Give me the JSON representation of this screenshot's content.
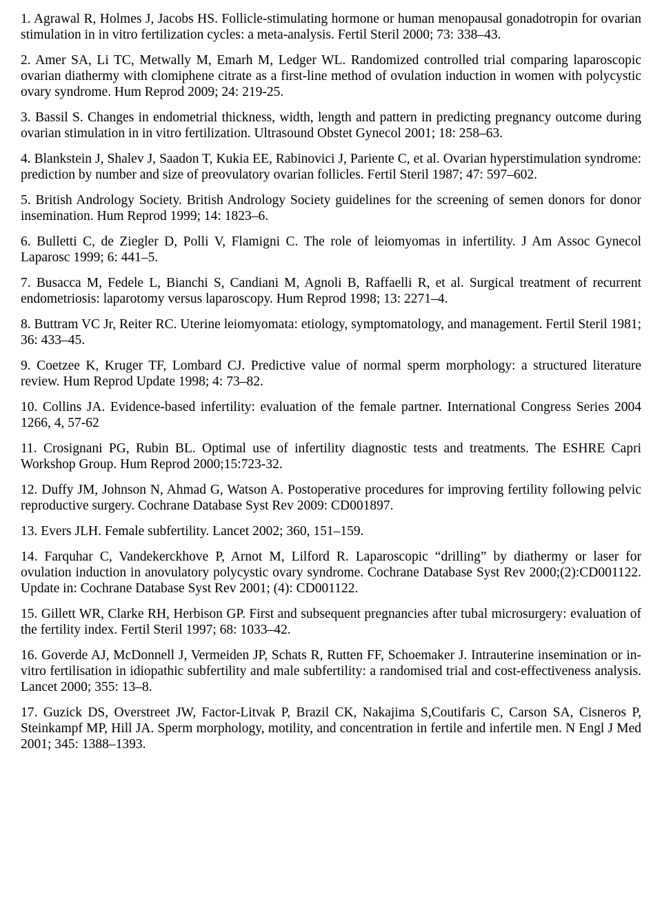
{
  "references": [
    "1. Agrawal R, Holmes J, Jacobs HS. Follicle-stimulating hormone or human menopausal gonadotropin for ovarian stimulation in in vitro fertilization cycles: a meta-analysis. Fertil Steril 2000; 73: 338–43.",
    "2. Amer SA, Li TC, Metwally M, Emarh M, Ledger WL. Randomized controlled trial comparing laparoscopic ovarian diathermy with clomiphene citrate as a first-line method of ovulation induction in women with polycystic ovary syndrome. Hum Reprod 2009; 24: 219-25.",
    "3. Bassil S. Changes in endometrial thickness, width, length and pattern in predicting pregnancy outcome during ovarian stimulation in in vitro fertilization. Ultrasound Obstet Gynecol 2001; 18: 258–63.",
    "4. Blankstein J, Shalev J, Saadon T, Kukia EE, Rabinovici J, Pariente C, et al. Ovarian hyperstimulation syndrome: prediction by number and size of preovulatory ovarian follicles. Fertil Steril 1987; 47: 597–602.",
    "5. British Andrology Society. British Andrology Society guidelines for the screening of semen donors for donor insemination. Hum Reprod 1999; 14: 1823–6.",
    "6. Bulletti C, de Ziegler D, Polli V, Flamigni C. The role of leiomyomas in infertility. J Am Assoc Gynecol Laparosc 1999; 6: 441–5.",
    "7. Busacca M, Fedele L, Bianchi S, Candiani M, Agnoli B, Raffaelli R, et al. Surgical treatment of recurrent endometriosis: laparotomy versus laparoscopy. Hum Reprod 1998; 13: 2271–4.",
    "8. Buttram VC Jr, Reiter RC. Uterine leiomyomata: etiology, symptomatology, and management. Fertil Steril 1981; 36: 433–45.",
    "9. Coetzee K, Kruger TF, Lombard CJ. Predictive value of normal sperm morphology: a structured literature review. Hum Reprod Update 1998; 4: 73–82.",
    "10. Collins JA. Evidence-based infertility: evaluation of the female partner. International Congress Series 2004 1266, 4, 57-62",
    "11. Crosignani PG, Rubin BL. Optimal use of infertility diagnostic tests and treatments. The ESHRE Capri Workshop Group. Hum Reprod 2000;15:723-32.",
    "12. Duffy JM, Johnson N, Ahmad G, Watson A. Postoperative procedures for improving fertility following pelvic reproductive surgery. Cochrane Database Syst Rev 2009: CD001897.",
    "13. Evers JLH. Female subfertility. Lancet 2002; 360, 151–159.",
    "14. Farquhar C, Vandekerckhove P, Arnot M, Lilford R. Laparoscopic “drilling” by diathermy or laser for ovulation induction in anovulatory polycystic ovary syndrome. Cochrane Database Syst Rev 2000;(2):CD001122. Update in: Cochrane Database Syst Rev 2001; (4): CD001122.",
    "15. Gillett WR, Clarke RH, Herbison GP. First and subsequent pregnancies after tubal microsurgery: evaluation of the fertility index. Fertil Steril 1997; 68: 1033–42.",
    "16. Goverde AJ, McDonnell J, Vermeiden JP, Schats R, Rutten FF, Schoemaker J. Intrauterine insemination or in-vitro fertilisation in idiopathic subfertility and male subfertility: a randomised trial and cost-effectiveness analysis. Lancet 2000; 355: 13–8.",
    "17. Guzick DS, Overstreet JW, Factor-Litvak P, Brazil CK, Nakajima S,Coutifaris C, Carson SA, Cisneros P, Steinkampf MP, Hill JA. Sperm morphology, motility, and concentration in fertile and infertile men. N Engl J Med 2001; 345: 1388–1393."
  ]
}
